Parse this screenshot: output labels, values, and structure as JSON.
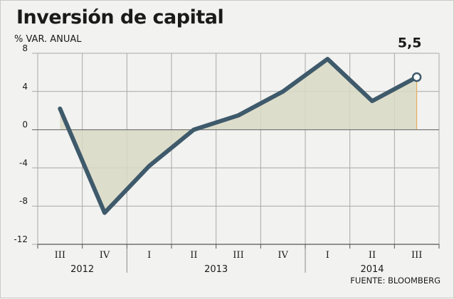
{
  "chart_data": {
    "type": "line",
    "title": "Inversión de capital",
    "subtitle": "% VAR. ANUAL",
    "source": "FUENTE: BLOOMBERG",
    "categories": [
      "III",
      "IV",
      "I",
      "II",
      "III",
      "IV",
      "I",
      "II",
      "III"
    ],
    "years": [
      {
        "label": "2012",
        "from": 0,
        "to": 1
      },
      {
        "label": "2013",
        "from": 2,
        "to": 5
      },
      {
        "label": "2014",
        "from": 6,
        "to": 8
      }
    ],
    "values": [
      2.2,
      -8.7,
      -3.8,
      0.0,
      1.5,
      4.0,
      7.4,
      3.0,
      5.5
    ],
    "ylim": [
      -12,
      8
    ],
    "yticks": [
      8,
      4,
      0,
      -4,
      -8,
      -12
    ],
    "ytick_labels": [
      "8",
      "4",
      "0",
      "-4",
      "-8",
      "-12"
    ],
    "grid": true,
    "highlight": {
      "index": 8,
      "label": "5,5"
    },
    "colors": {
      "line": "#3e5a6b",
      "area": "#d9d9c4",
      "background": "#f2f2f0",
      "grid": "#a8a8a8",
      "baseline": "#7a7a7a"
    }
  }
}
